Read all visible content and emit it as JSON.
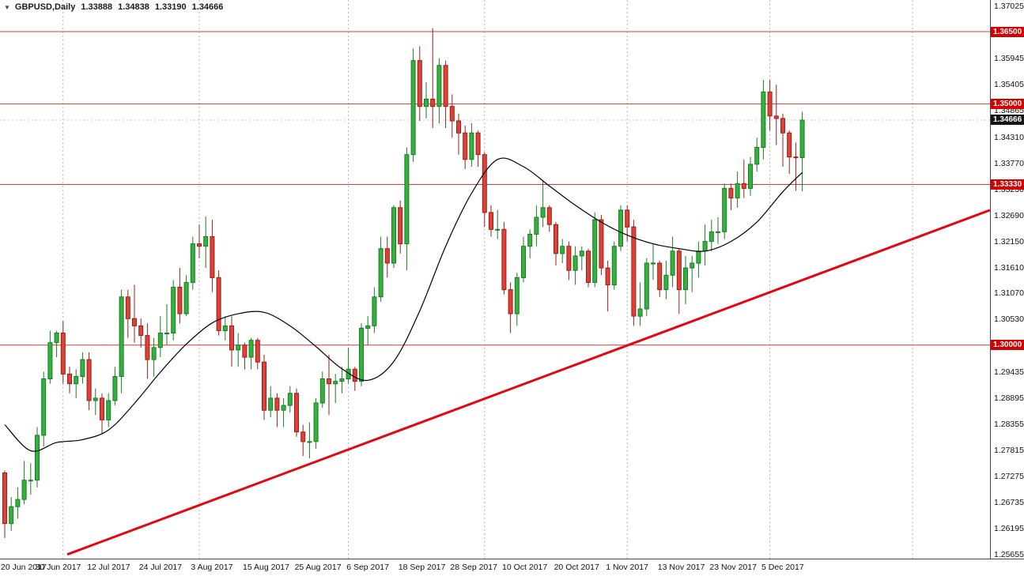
{
  "header": {
    "collapse_arrow": "▼",
    "symbol_period": "GBPUSD,Daily",
    "open": "1.33888",
    "high": "1.34838",
    "low": "1.33190",
    "close": "1.34666"
  },
  "chart_data": {
    "type": "candlestick",
    "symbol": "GBPUSD",
    "timeframe": "Daily",
    "y_axis": {
      "min": 1.25655,
      "max": 1.37025,
      "ticks": [
        "1.37025",
        "1.35945",
        "1.35405",
        "1.34865",
        "1.34310",
        "1.33770",
        "1.33230",
        "1.32690",
        "1.32150",
        "1.31610",
        "1.31070",
        "1.30530",
        "1.29435",
        "1.28895",
        "1.28355",
        "1.27815",
        "1.27275",
        "1.26735",
        "1.26195",
        "1.25655"
      ]
    },
    "x_axis": {
      "labels": [
        {
          "i": 0,
          "label": "20 Jun 2017"
        },
        {
          "i": 8,
          "label": "30 Jun 2017"
        },
        {
          "i": 16,
          "label": "12 Jul 2017"
        },
        {
          "i": 24,
          "label": "24 Jul 2017"
        },
        {
          "i": 32,
          "label": "3 Aug 2017"
        },
        {
          "i": 40,
          "label": "15 Aug 2017"
        },
        {
          "i": 48,
          "label": "25 Aug 2017"
        },
        {
          "i": 56,
          "label": "6 Sep 2017"
        },
        {
          "i": 64,
          "label": "18 Sep 2017"
        },
        {
          "i": 72,
          "label": "28 Sep 2017"
        },
        {
          "i": 80,
          "label": "10 Oct 2017"
        },
        {
          "i": 88,
          "label": "20 Oct 2017"
        },
        {
          "i": 96,
          "label": "1 Nov 2017"
        },
        {
          "i": 104,
          "label": "13 Nov 2017"
        },
        {
          "i": 112,
          "label": "23 Nov 2017"
        },
        {
          "i": 120,
          "label": "5 Dec 2017"
        }
      ]
    },
    "month_gridline_indices": [
      9,
      30,
      53,
      74,
      96,
      118,
      140
    ],
    "horizontal_lines": [
      {
        "price": 1.365,
        "label": "1.36500"
      },
      {
        "price": 1.35,
        "label": "1.35000"
      },
      {
        "price": 1.3333,
        "label": "1.33330"
      },
      {
        "price": 1.3,
        "label": "1.30000"
      }
    ],
    "current_price": {
      "value": 1.34666,
      "label": "1.34666"
    },
    "trendline": {
      "x1_frac": 0.068,
      "price1": 1.2566,
      "x2_frac": 1.0,
      "price2": 1.328
    },
    "ma_points": [
      [
        0,
        1.2835
      ],
      [
        4,
        1.2781
      ],
      [
        8,
        1.2798
      ],
      [
        12,
        1.2804
      ],
      [
        16,
        1.2824
      ],
      [
        20,
        1.2879
      ],
      [
        24,
        1.2944
      ],
      [
        28,
        1.3002
      ],
      [
        32,
        1.3046
      ],
      [
        36,
        1.3065
      ],
      [
        40,
        1.3068
      ],
      [
        44,
        1.304
      ],
      [
        48,
        1.2997
      ],
      [
        52,
        1.2951
      ],
      [
        56,
        1.2927
      ],
      [
        60,
        1.2966
      ],
      [
        64,
        1.3071
      ],
      [
        68,
        1.3205
      ],
      [
        72,
        1.3315
      ],
      [
        76,
        1.3385
      ],
      [
        80,
        1.337
      ],
      [
        84,
        1.333
      ],
      [
        88,
        1.329
      ],
      [
        92,
        1.3255
      ],
      [
        96,
        1.3228
      ],
      [
        100,
        1.321
      ],
      [
        104,
        1.32
      ],
      [
        108,
        1.3195
      ],
      [
        112,
        1.3215
      ],
      [
        116,
        1.3255
      ],
      [
        120,
        1.3318
      ],
      [
        123,
        1.3358
      ]
    ],
    "candles": [
      [
        1.2735,
        1.274,
        1.26,
        1.263
      ],
      [
        1.263,
        1.2685,
        1.2615,
        1.2665
      ],
      [
        1.2665,
        1.2705,
        1.264,
        1.268
      ],
      [
        1.268,
        1.276,
        1.267,
        1.272
      ],
      [
        1.272,
        1.2755,
        1.269,
        1.272
      ],
      [
        1.272,
        1.283,
        1.2705,
        1.2813
      ],
      [
        1.2813,
        1.2945,
        1.279,
        1.293
      ],
      [
        1.293,
        1.303,
        1.292,
        1.3005
      ],
      [
        1.3005,
        1.303,
        1.2975,
        1.3025
      ],
      [
        1.3025,
        1.305,
        1.292,
        1.294
      ],
      [
        1.294,
        1.2955,
        1.29,
        1.292
      ],
      [
        1.292,
        1.295,
        1.289,
        1.2935
      ],
      [
        1.2935,
        1.2985,
        1.292,
        1.297
      ],
      [
        1.297,
        1.2985,
        1.2865,
        1.2885
      ],
      [
        1.2885,
        1.291,
        1.2855,
        1.289
      ],
      [
        1.289,
        1.29,
        1.2815,
        1.2845
      ],
      [
        1.2845,
        1.29,
        1.283,
        1.2885
      ],
      [
        1.2885,
        1.2955,
        1.2875,
        1.2935
      ],
      [
        1.2935,
        1.3115,
        1.29,
        1.31
      ],
      [
        1.31,
        1.3115,
        1.3015,
        1.3055
      ],
      [
        1.3055,
        1.3125,
        1.3005,
        1.304
      ],
      [
        1.304,
        1.3055,
        1.2995,
        1.302
      ],
      [
        1.302,
        1.3045,
        1.293,
        1.297
      ],
      [
        1.297,
        1.3015,
        1.2935,
        1.2995
      ],
      [
        1.2995,
        1.306,
        1.2975,
        1.3025
      ],
      [
        1.3025,
        1.3085,
        1.3,
        1.3025
      ],
      [
        1.3025,
        1.3135,
        1.301,
        1.312
      ],
      [
        1.312,
        1.316,
        1.3045,
        1.3065
      ],
      [
        1.3065,
        1.3145,
        1.306,
        1.313
      ],
      [
        1.313,
        1.3225,
        1.3115,
        1.321
      ],
      [
        1.321,
        1.325,
        1.318,
        1.3205
      ],
      [
        1.3205,
        1.3267,
        1.316,
        1.3225
      ],
      [
        1.3225,
        1.326,
        1.311,
        1.314
      ],
      [
        1.314,
        1.3155,
        1.302,
        1.303
      ],
      [
        1.303,
        1.306,
        1.301,
        1.304
      ],
      [
        1.304,
        1.306,
        1.2955,
        1.299
      ],
      [
        1.299,
        1.3025,
        1.2955,
        1.3
      ],
      [
        1.3,
        1.3005,
        1.295,
        1.2975
      ],
      [
        1.2975,
        1.3015,
        1.295,
        1.301
      ],
      [
        1.301,
        1.3015,
        1.295,
        1.2965
      ],
      [
        1.2965,
        1.298,
        1.2845,
        1.2865
      ],
      [
        1.2865,
        1.2915,
        1.285,
        1.289
      ],
      [
        1.289,
        1.29,
        1.283,
        1.2865
      ],
      [
        1.2865,
        1.289,
        1.283,
        1.2875
      ],
      [
        1.2875,
        1.2915,
        1.286,
        1.29
      ],
      [
        1.29,
        1.291,
        1.281,
        1.282
      ],
      [
        1.282,
        1.2835,
        1.277,
        1.28
      ],
      [
        1.28,
        1.284,
        1.2765,
        1.28
      ],
      [
        1.28,
        1.289,
        1.2785,
        1.288
      ],
      [
        1.288,
        1.2945,
        1.287,
        1.293
      ],
      [
        1.293,
        1.298,
        1.2855,
        1.292
      ],
      [
        1.292,
        1.294,
        1.288,
        1.2925
      ],
      [
        1.2925,
        1.2955,
        1.29,
        1.293
      ],
      [
        1.293,
        1.2995,
        1.292,
        1.295
      ],
      [
        1.295,
        1.2955,
        1.2905,
        1.2925
      ],
      [
        1.2925,
        1.3045,
        1.2915,
        1.3035
      ],
      [
        1.3035,
        1.306,
        1.3,
        1.304
      ],
      [
        1.304,
        1.312,
        1.3025,
        1.31
      ],
      [
        1.31,
        1.3225,
        1.309,
        1.32
      ],
      [
        1.32,
        1.3225,
        1.314,
        1.317
      ],
      [
        1.317,
        1.329,
        1.316,
        1.3285
      ],
      [
        1.3285,
        1.33,
        1.319,
        1.321
      ],
      [
        1.321,
        1.341,
        1.3155,
        1.3395
      ],
      [
        1.3395,
        1.3615,
        1.338,
        1.359
      ],
      [
        1.359,
        1.362,
        1.3465,
        1.3495
      ],
      [
        1.3495,
        1.3545,
        1.347,
        1.351
      ],
      [
        1.351,
        1.3657,
        1.345,
        1.3495
      ],
      [
        1.3495,
        1.3595,
        1.346,
        1.358
      ],
      [
        1.358,
        1.359,
        1.345,
        1.3495
      ],
      [
        1.3495,
        1.352,
        1.343,
        1.3465
      ],
      [
        1.3465,
        1.348,
        1.3395,
        1.344
      ],
      [
        1.344,
        1.3455,
        1.3365,
        1.3385
      ],
      [
        1.3385,
        1.346,
        1.337,
        1.344
      ],
      [
        1.344,
        1.3445,
        1.337,
        1.3395
      ],
      [
        1.3395,
        1.34,
        1.3245,
        1.3275
      ],
      [
        1.3275,
        1.329,
        1.3225,
        1.324
      ],
      [
        1.324,
        1.328,
        1.322,
        1.324
      ],
      [
        1.324,
        1.3255,
        1.3105,
        1.3115
      ],
      [
        1.3115,
        1.313,
        1.3025,
        1.3065
      ],
      [
        1.3065,
        1.315,
        1.304,
        1.314
      ],
      [
        1.314,
        1.3225,
        1.313,
        1.3205
      ],
      [
        1.3205,
        1.324,
        1.318,
        1.323
      ],
      [
        1.323,
        1.329,
        1.3205,
        1.3265
      ],
      [
        1.3265,
        1.334,
        1.3245,
        1.3285
      ],
      [
        1.3285,
        1.329,
        1.3235,
        1.325
      ],
      [
        1.325,
        1.3255,
        1.3165,
        1.319
      ],
      [
        1.319,
        1.322,
        1.317,
        1.3205
      ],
      [
        1.3205,
        1.3215,
        1.3135,
        1.3155
      ],
      [
        1.3155,
        1.3205,
        1.3125,
        1.3185
      ],
      [
        1.3185,
        1.3205,
        1.3155,
        1.3195
      ],
      [
        1.3195,
        1.32,
        1.312,
        1.313
      ],
      [
        1.313,
        1.3275,
        1.312,
        1.326
      ],
      [
        1.326,
        1.327,
        1.3145,
        1.316
      ],
      [
        1.316,
        1.3175,
        1.307,
        1.3125
      ],
      [
        1.3125,
        1.3215,
        1.3115,
        1.3205
      ],
      [
        1.3205,
        1.329,
        1.3195,
        1.328
      ],
      [
        1.328,
        1.329,
        1.3215,
        1.3245
      ],
      [
        1.3245,
        1.326,
        1.304,
        1.306
      ],
      [
        1.306,
        1.313,
        1.304,
        1.3075
      ],
      [
        1.3075,
        1.318,
        1.306,
        1.317
      ],
      [
        1.317,
        1.321,
        1.3135,
        1.317
      ],
      [
        1.317,
        1.3175,
        1.31,
        1.3115
      ],
      [
        1.3115,
        1.3175,
        1.3095,
        1.3145
      ],
      [
        1.3145,
        1.3225,
        1.312,
        1.3195
      ],
      [
        1.3195,
        1.32,
        1.3065,
        1.3115
      ],
      [
        1.3115,
        1.3185,
        1.3085,
        1.316
      ],
      [
        1.316,
        1.3185,
        1.311,
        1.317
      ],
      [
        1.317,
        1.3215,
        1.314,
        1.3195
      ],
      [
        1.3195,
        1.325,
        1.3165,
        1.3215
      ],
      [
        1.3215,
        1.326,
        1.3195,
        1.3235
      ],
      [
        1.3235,
        1.3265,
        1.321,
        1.3235
      ],
      [
        1.3235,
        1.3335,
        1.322,
        1.3325
      ],
      [
        1.3325,
        1.3335,
        1.328,
        1.3305
      ],
      [
        1.3305,
        1.336,
        1.3285,
        1.3335
      ],
      [
        1.3335,
        1.3385,
        1.3305,
        1.3325
      ],
      [
        1.3325,
        1.339,
        1.331,
        1.3375
      ],
      [
        1.3375,
        1.343,
        1.336,
        1.341
      ],
      [
        1.341,
        1.355,
        1.3385,
        1.3525
      ],
      [
        1.3525,
        1.355,
        1.3445,
        1.3475
      ],
      [
        1.3475,
        1.354,
        1.3415,
        1.347
      ],
      [
        1.347,
        1.348,
        1.337,
        1.344
      ],
      [
        1.344,
        1.3445,
        1.3355,
        1.339
      ],
      [
        1.339,
        1.342,
        1.332,
        1.3389
      ],
      [
        1.33888,
        1.34838,
        1.3319,
        1.34666
      ]
    ],
    "colors": {
      "bull": "#35b13f",
      "bull_border": "#1d7a24",
      "bear": "#dd4238",
      "bear_border": "#9e1d16",
      "ma_line": "#000000",
      "level_line": "#d43a3a",
      "level_label_bg": "#d40000",
      "trend_line": "#e30613",
      "grid": "#b5b5b5",
      "bid_line": "#c9c9c9",
      "current_label_bg": "#141414"
    }
  }
}
